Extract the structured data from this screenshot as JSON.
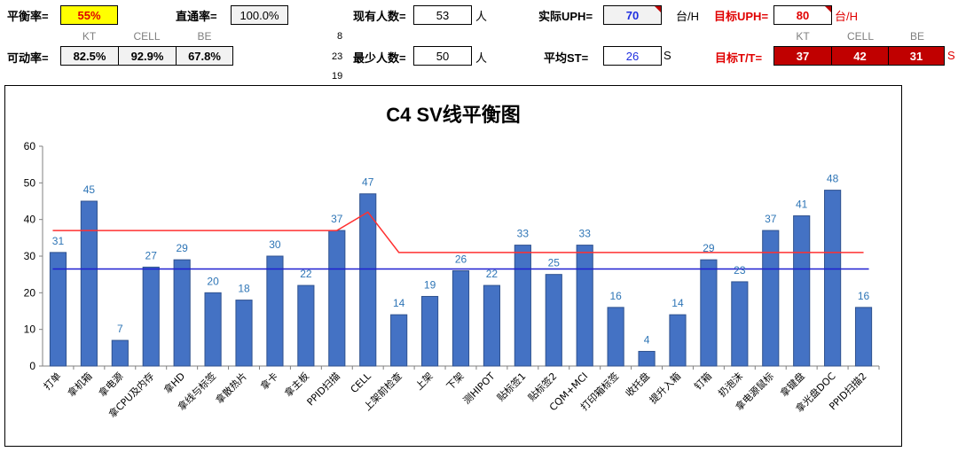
{
  "header": {
    "balance_rate": {
      "label": "平衡率=",
      "value": "55%"
    },
    "pass_rate": {
      "label": "直通率=",
      "value": "100.0%"
    },
    "current_people": {
      "label": "现有人数=",
      "value": "53",
      "unit": "人"
    },
    "actual_uph": {
      "label": "实际UPH=",
      "value": "70",
      "unit": "台/H"
    },
    "target_uph": {
      "label": "目标UPH=",
      "value": "80",
      "unit": "台/H"
    },
    "kt_header": "KT",
    "cell_header": "CELL",
    "be_header": "BE",
    "availability": {
      "label": "可动率=",
      "kt": "82.5%",
      "cell": "92.9%",
      "be": "67.8%"
    },
    "side_numbers": [
      "8",
      "23",
      "19"
    ],
    "min_people": {
      "label": "最少人数=",
      "value": "50",
      "unit": "人"
    },
    "avg_st": {
      "label": "平均ST=",
      "value": "26",
      "unit": "S"
    },
    "target_tt": {
      "label": "目标T/T=",
      "kt": "37",
      "cell": "42",
      "be": "31",
      "unit": "S"
    }
  },
  "chart_data": {
    "type": "bar",
    "title": "C4 SV线平衡图",
    "categories": [
      "打单",
      "拿机箱",
      "拿电源",
      "拿CPU及内存",
      "拿HD",
      "拿线与标签",
      "拿散热片",
      "拿卡",
      "拿主板",
      "PPID扫描",
      "CELL",
      "上架前检查",
      "上架",
      "下架",
      "测HIPOT",
      "贴标签1",
      "贴标签2",
      "CQM+MCI",
      "打印箱标签",
      "收托盘",
      "提升入箱",
      "钉箱",
      "扔泡沫",
      "拿电源鼠标",
      "拿键盘",
      "拿光盘DOC",
      "PPID扫描2"
    ],
    "values": [
      31,
      45,
      7,
      27,
      29,
      20,
      18,
      30,
      22,
      37,
      47,
      14,
      19,
      26,
      22,
      33,
      25,
      33,
      16,
      4,
      14,
      29,
      23,
      37,
      41,
      48,
      16
    ],
    "series_lines": {
      "target_tt": [
        37,
        37,
        37,
        37,
        37,
        37,
        37,
        37,
        37,
        37,
        42,
        31,
        31,
        31,
        31,
        31,
        31,
        31,
        31,
        31,
        31,
        31,
        31,
        31,
        31,
        31,
        31
      ],
      "average_st": 26.5
    },
    "ylim": [
      0,
      60
    ],
    "yticks": [
      0,
      10,
      20,
      30,
      40,
      50,
      60
    ],
    "colors": {
      "bar": "#4472c4",
      "bar_edge": "#2f528f",
      "label": "#2e75b6",
      "target_line": "#ff3030",
      "avg_line": "#1f1fd0"
    },
    "grid": false
  }
}
